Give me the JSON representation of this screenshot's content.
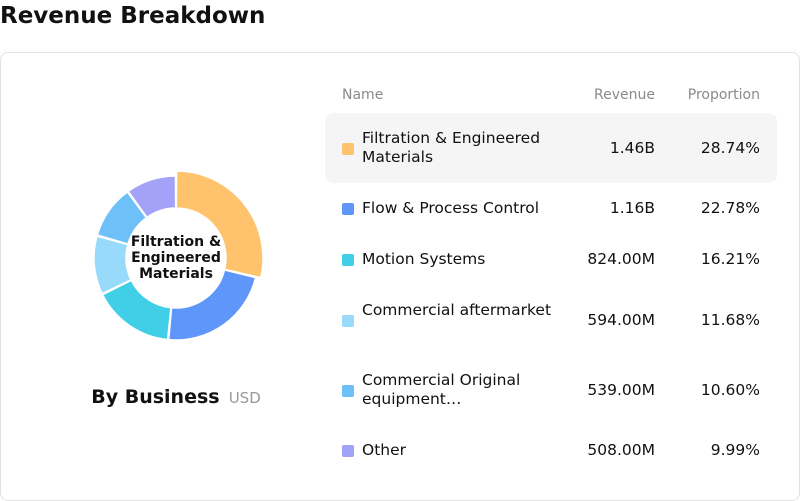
{
  "page": {
    "title": "Revenue Breakdown"
  },
  "chart_data": {
    "type": "pie",
    "donut": true,
    "center_label": "Filtration & Engineered Materials",
    "caption": "By Business",
    "unit": "USD",
    "columns": {
      "name": "Name",
      "revenue": "Revenue",
      "proportion": "Proportion"
    },
    "highlighted_index": 0,
    "slices": [
      {
        "name": "Filtration & Engineered Materials",
        "display_name": "Filtration & Engineered Materials",
        "revenue": "1.46B",
        "proportion": "28.74%",
        "value": 28.74,
        "color": "#ffc36e"
      },
      {
        "name": "Flow & Process Control",
        "display_name": "Flow & Process Control",
        "revenue": "1.16B",
        "proportion": "22.78%",
        "value": 22.78,
        "color": "#5e96fa"
      },
      {
        "name": "Motion Systems",
        "display_name": "Motion Systems",
        "revenue": "824.00M",
        "proportion": "16.21%",
        "value": 16.21,
        "color": "#40cfe6"
      },
      {
        "name": "Commercial aftermarket",
        "display_name": "Commercial aftermarket",
        "revenue": "594.00M",
        "proportion": "11.68%",
        "value": 11.68,
        "color": "#97daf9"
      },
      {
        "name": "Commercial Original equipment",
        "display_name": "Commercial Original equipment…",
        "revenue": "539.00M",
        "proportion": "10.60%",
        "value": 10.6,
        "color": "#6ec1f8"
      },
      {
        "name": "Other",
        "display_name": "Other",
        "revenue": "508.00M",
        "proportion": "9.99%",
        "value": 9.99,
        "color": "#a2a2f8"
      }
    ]
  }
}
